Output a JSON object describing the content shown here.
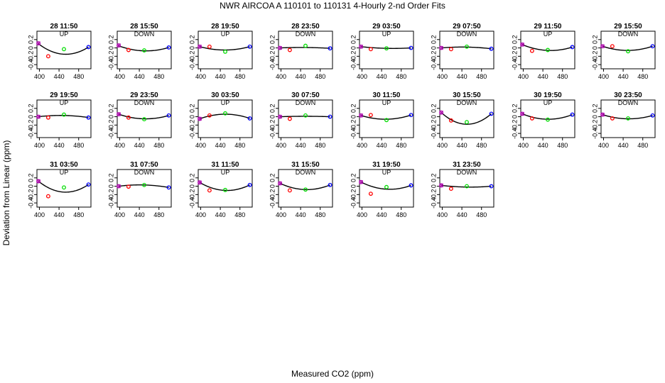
{
  "title": "NWR   AIRCOA A   110101 to 110131   4-Hourly 2-nd Order Fits",
  "xlabel": "Measured CO2 (ppm)",
  "ylabel": "Deviation from Linear (ppm)",
  "colors": {
    "red": "#ff0000",
    "green": "#00dd00",
    "blue": "#0000ff",
    "purple": "#aa00aa",
    "curve": "#000000"
  },
  "chart_data": {
    "type": "scatter",
    "xlim": [
      395,
      505
    ],
    "ylim": [
      -0.5,
      0.4
    ],
    "xticks": [
      400,
      440,
      480
    ],
    "yticks": [
      0.2,
      0,
      -0.2,
      -0.4
    ],
    "ytick_labels": [
      "0.2",
      "0",
      "-0.2",
      "-0.4"
    ],
    "xtick_labels": [
      "400",
      "440",
      "480"
    ],
    "standards_x": [
      398,
      418,
      450,
      500
    ],
    "panels": [
      {
        "label": "28 11:50",
        "direction": "UP",
        "points": [
          0.11,
          -0.2,
          -0.03,
          0.02
        ],
        "curve": [
          0.1,
          -0.15,
          0.02
        ]
      },
      {
        "label": "28 15:50",
        "direction": "DOWN",
        "points": [
          0.06,
          -0.05,
          -0.06,
          0.01
        ],
        "curve": [
          0.05,
          -0.07,
          0.01
        ]
      },
      {
        "label": "28 19:50",
        "direction": "UP",
        "points": [
          0.03,
          0.03,
          -0.09,
          0.03
        ],
        "curve": [
          0.03,
          -0.05,
          0.03
        ]
      },
      {
        "label": "28 23:50",
        "direction": "DOWN",
        "points": [
          0.0,
          -0.05,
          0.05,
          -0.01
        ],
        "curve": [
          0.0,
          0.01,
          -0.01
        ]
      },
      {
        "label": "29 03:50",
        "direction": "UP",
        "points": [
          0.03,
          -0.03,
          -0.01,
          0.0
        ],
        "curve": [
          0.03,
          -0.01,
          0.0
        ]
      },
      {
        "label": "29 07:50",
        "direction": "DOWN",
        "points": [
          0.0,
          -0.03,
          0.03,
          -0.02
        ],
        "curve": [
          0.0,
          0.02,
          -0.02
        ]
      },
      {
        "label": "29 11:50",
        "direction": "UP",
        "points": [
          0.08,
          -0.07,
          -0.05,
          0.02
        ],
        "curve": [
          0.08,
          -0.06,
          0.02
        ]
      },
      {
        "label": "29 15:50",
        "direction": "DOWN",
        "points": [
          0.04,
          0.04,
          -0.08,
          0.04
        ],
        "curve": [
          0.04,
          -0.06,
          0.04
        ]
      },
      {
        "label": "29 19:50",
        "direction": "UP",
        "points": [
          0.0,
          -0.02,
          0.05,
          -0.02
        ],
        "curve": [
          0.0,
          0.03,
          -0.02
        ]
      },
      {
        "label": "29 23:50",
        "direction": "DOWN",
        "points": [
          0.06,
          -0.02,
          -0.06,
          0.03
        ],
        "curve": [
          0.06,
          -0.05,
          0.03
        ]
      },
      {
        "label": "30 03:50",
        "direction": "UP",
        "points": [
          -0.05,
          0.03,
          0.08,
          -0.04
        ],
        "curve": [
          -0.05,
          0.06,
          -0.04
        ]
      },
      {
        "label": "30 07:50",
        "direction": "DOWN",
        "points": [
          0.0,
          -0.05,
          0.03,
          0.0
        ],
        "curve": [
          0.0,
          0.01,
          0.0
        ]
      },
      {
        "label": "30 11:50",
        "direction": "UP",
        "points": [
          0.03,
          0.04,
          -0.08,
          0.04
        ],
        "curve": [
          0.03,
          -0.06,
          0.04
        ]
      },
      {
        "label": "30 15:50",
        "direction": "DOWN",
        "points": [
          0.1,
          -0.09,
          -0.13,
          0.07
        ],
        "curve": [
          0.1,
          -0.18,
          0.07
        ]
      },
      {
        "label": "30 19:50",
        "direction": "UP",
        "points": [
          0.07,
          -0.04,
          -0.07,
          0.05
        ],
        "curve": [
          0.07,
          -0.06,
          0.05
        ]
      },
      {
        "label": "30 23:50",
        "direction": "DOWN",
        "points": [
          0.05,
          -0.04,
          -0.04,
          0.03
        ],
        "curve": [
          0.05,
          -0.05,
          0.03
        ]
      },
      {
        "label": "31 03:50",
        "direction": "UP",
        "points": [
          0.12,
          -0.24,
          -0.03,
          0.04
        ],
        "curve": [
          0.12,
          -0.14,
          0.04
        ]
      },
      {
        "label": "31 07:50",
        "direction": "DOWN",
        "points": [
          0.0,
          -0.01,
          0.03,
          -0.03
        ],
        "curve": [
          0.0,
          0.03,
          -0.03
        ]
      },
      {
        "label": "31 11:50",
        "direction": "UP",
        "points": [
          0.09,
          -0.1,
          -0.09,
          0.03
        ],
        "curve": [
          0.09,
          -0.1,
          0.03
        ]
      },
      {
        "label": "31 15:50",
        "direction": "DOWN",
        "points": [
          0.07,
          -0.1,
          -0.08,
          0.03
        ],
        "curve": [
          0.07,
          -0.08,
          0.03
        ]
      },
      {
        "label": "31 19:50",
        "direction": "UP",
        "points": [
          0.1,
          -0.18,
          -0.02,
          0.02
        ],
        "curve": [
          0.1,
          -0.07,
          0.02
        ]
      },
      {
        "label": "31 23:50",
        "direction": "DOWN",
        "points": [
          0.02,
          -0.06,
          0.0,
          0.0
        ],
        "curve": [
          0.02,
          -0.02,
          0.0
        ]
      }
    ]
  }
}
